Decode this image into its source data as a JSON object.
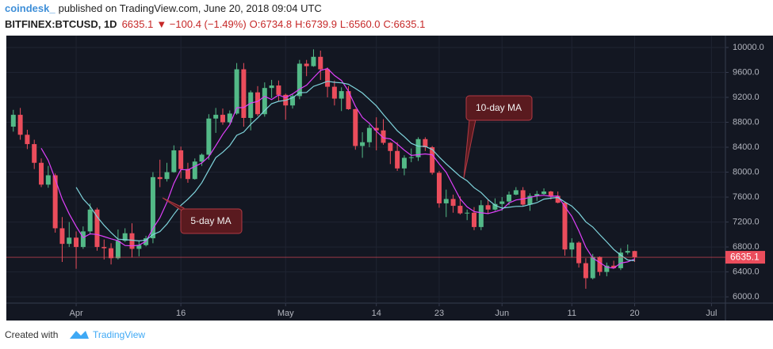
{
  "header": {
    "author": "coindesk_",
    "published": "published on TradingView.com, June 20, 2018 09:04 UTC"
  },
  "legend": {
    "symbol": "BITFINEX:BTCUSD, 1D",
    "last": "6635.1",
    "change": "▼ −100.4 (−1.49%)",
    "o": "O:6734.8",
    "h": "H:6739.9",
    "l": "L:6560.0",
    "c": "C:6635.1"
  },
  "footer": {
    "created": "Created with",
    "brand": "TradingView"
  },
  "chart_data": {
    "type": "candlestick",
    "x": [
      "2018-03-23",
      "2018-03-24",
      "2018-03-25",
      "2018-03-26",
      "2018-03-27",
      "2018-03-28",
      "2018-03-29",
      "2018-03-30",
      "2018-03-31",
      "2018-04-01",
      "2018-04-02",
      "2018-04-03",
      "2018-04-04",
      "2018-04-05",
      "2018-04-06",
      "2018-04-07",
      "2018-04-08",
      "2018-04-09",
      "2018-04-10",
      "2018-04-11",
      "2018-04-12",
      "2018-04-13",
      "2018-04-14",
      "2018-04-15",
      "2018-04-16",
      "2018-04-17",
      "2018-04-18",
      "2018-04-19",
      "2018-04-20",
      "2018-04-21",
      "2018-04-22",
      "2018-04-23",
      "2018-04-24",
      "2018-04-25",
      "2018-04-26",
      "2018-04-27",
      "2018-04-28",
      "2018-04-29",
      "2018-04-30",
      "2018-05-01",
      "2018-05-02",
      "2018-05-03",
      "2018-05-04",
      "2018-05-05",
      "2018-05-06",
      "2018-05-07",
      "2018-05-08",
      "2018-05-09",
      "2018-05-10",
      "2018-05-11",
      "2018-05-12",
      "2018-05-13",
      "2018-05-14",
      "2018-05-15",
      "2018-05-16",
      "2018-05-17",
      "2018-05-18",
      "2018-05-19",
      "2018-05-20",
      "2018-05-21",
      "2018-05-22",
      "2018-05-23",
      "2018-05-24",
      "2018-05-25",
      "2018-05-26",
      "2018-05-27",
      "2018-05-28",
      "2018-05-29",
      "2018-05-30",
      "2018-05-31",
      "2018-06-01",
      "2018-06-02",
      "2018-06-03",
      "2018-06-04",
      "2018-06-05",
      "2018-06-06",
      "2018-06-07",
      "2018-06-08",
      "2018-06-09",
      "2018-06-10",
      "2018-06-11",
      "2018-06-12",
      "2018-06-13",
      "2018-06-14",
      "2018-06-15",
      "2018-06-16",
      "2018-06-17",
      "2018-06-18",
      "2018-06-19",
      "2018-06-20"
    ],
    "open": [
      8730,
      8920,
      8600,
      8450,
      8150,
      7800,
      7950,
      7100,
      6850,
      6950,
      6800,
      7050,
      7400,
      6800,
      6780,
      6620,
      6900,
      7020,
      6770,
      6830,
      6940,
      7920,
      7890,
      8000,
      8350,
      8050,
      7890,
      8170,
      8280,
      8860,
      8920,
      8800,
      8940,
      9650,
      8870,
      9280,
      8930,
      9350,
      9390,
      9240,
      9070,
      9220,
      9740,
      9700,
      9850,
      9650,
      9370,
      9180,
      9300,
      9010,
      8420,
      8480,
      8710,
      8670,
      8470,
      8340,
      8060,
      8230,
      8240,
      8530,
      8400,
      7990,
      7500,
      7570,
      7460,
      7340,
      7350,
      7120,
      7470,
      7400,
      7490,
      7530,
      7640,
      7710,
      7480,
      7620,
      7650,
      7690,
      7620,
      7510,
      6760,
      6870,
      6540,
      6300,
      6640,
      6400,
      6500,
      6460,
      6710,
      6734.8
    ],
    "high": [
      9000,
      9030,
      8680,
      8520,
      8220,
      8100,
      7980,
      7280,
      7200,
      7050,
      7130,
      7500,
      7430,
      6920,
      6860,
      7080,
      7100,
      7180,
      6890,
      6980,
      8000,
      8200,
      8150,
      8430,
      8410,
      8150,
      8220,
      8300,
      8930,
      9030,
      9020,
      8990,
      9750,
      9750,
      9310,
      9380,
      9440,
      9480,
      9470,
      9260,
      9260,
      9800,
      9800,
      9970,
      9950,
      9680,
      9470,
      9360,
      9380,
      9020,
      8640,
      8760,
      8880,
      8850,
      8480,
      8480,
      8270,
      8380,
      8560,
      8560,
      8420,
      8020,
      7720,
      7640,
      7610,
      7400,
      7440,
      7550,
      7560,
      7580,
      7600,
      7690,
      7760,
      7760,
      7660,
      7700,
      7740,
      7700,
      7690,
      7520,
      6940,
      6890,
      6620,
      6690,
      6650,
      6550,
      6580,
      6780,
      6840,
      6739.9
    ],
    "low": [
      8650,
      8520,
      8370,
      8050,
      7760,
      7750,
      7030,
      6560,
      6800,
      6450,
      6770,
      7000,
      6740,
      6600,
      6520,
      6600,
      6880,
      6630,
      6650,
      6810,
      6860,
      7760,
      7850,
      7990,
      7900,
      7830,
      7880,
      8100,
      8200,
      8630,
      8760,
      8780,
      8920,
      8730,
      8670,
      8900,
      8890,
      9190,
      9140,
      8840,
      9020,
      9170,
      9540,
      9690,
      9480,
      9200,
      9070,
      8980,
      9000,
      8360,
      8230,
      8400,
      8350,
      8440,
      8130,
      8020,
      7950,
      8160,
      8180,
      8340,
      7960,
      7430,
      7280,
      7350,
      7320,
      7230,
      7070,
      7070,
      7330,
      7380,
      7380,
      7470,
      7630,
      7460,
      7380,
      7540,
      7640,
      7560,
      7500,
      6660,
      6630,
      6470,
      6130,
      6280,
      6340,
      6330,
      6450,
      6430,
      6680,
      6560.0
    ],
    "close": [
      8920,
      8600,
      8450,
      8150,
      7800,
      7950,
      7100,
      6850,
      6950,
      6800,
      7050,
      7400,
      6800,
      6780,
      6620,
      6900,
      7020,
      6770,
      6830,
      6940,
      7920,
      7890,
      8000,
      8350,
      8050,
      7890,
      8170,
      8280,
      8860,
      8920,
      8800,
      8940,
      9650,
      8870,
      9280,
      8930,
      9350,
      9390,
      9240,
      9070,
      9220,
      9740,
      9700,
      9850,
      9650,
      9370,
      9180,
      9300,
      9010,
      8420,
      8480,
      8710,
      8670,
      8470,
      8340,
      8060,
      8230,
      8240,
      8530,
      8400,
      7990,
      7500,
      7570,
      7460,
      7340,
      7350,
      7120,
      7470,
      7400,
      7490,
      7530,
      7640,
      7710,
      7480,
      7620,
      7650,
      7690,
      7620,
      7510,
      6760,
      6870,
      6540,
      6300,
      6640,
      6400,
      6500,
      6460,
      6710,
      6735.5,
      6635.1
    ],
    "up_color": "#53b987",
    "down_color": "#eb4d5c",
    "moving_averages": [
      {
        "name": "5-day MA",
        "period": 5,
        "color": "#e040fb"
      },
      {
        "name": "10-day MA",
        "period": 10,
        "color": "#7fd4dc"
      }
    ],
    "xlim": [
      "2018-03-22",
      "2018-07-03"
    ],
    "xticks": [
      {
        "value": "2018-04-01",
        "label": "Apr"
      },
      {
        "value": "2018-04-16",
        "label": "16"
      },
      {
        "value": "2018-05-01",
        "label": "May"
      },
      {
        "value": "2018-05-14",
        "label": "14"
      },
      {
        "value": "2018-05-23",
        "label": "23"
      },
      {
        "value": "2018-06-01",
        "label": "Jun"
      },
      {
        "value": "2018-06-11",
        "label": "11"
      },
      {
        "value": "2018-06-20",
        "label": "20"
      },
      {
        "value": "2018-07-01",
        "label": "Jul"
      }
    ],
    "ylim": [
      5900,
      10190
    ],
    "yticks": [
      {
        "value": 6000,
        "label": "6000.0"
      },
      {
        "value": 6400,
        "label": "6400.0"
      },
      {
        "value": 6800,
        "label": "6800.0"
      },
      {
        "value": 7200,
        "label": "7200.0"
      },
      {
        "value": 7600,
        "label": "7600.0"
      },
      {
        "value": 8000,
        "label": "8000.0"
      },
      {
        "value": 8400,
        "label": "8400.0"
      },
      {
        "value": 8800,
        "label": "8800.0"
      },
      {
        "value": 9200,
        "label": "9200.0"
      },
      {
        "value": 9600,
        "label": "9600.0"
      },
      {
        "value": 10000,
        "label": "10000.0"
      }
    ],
    "grid": true
  }
}
